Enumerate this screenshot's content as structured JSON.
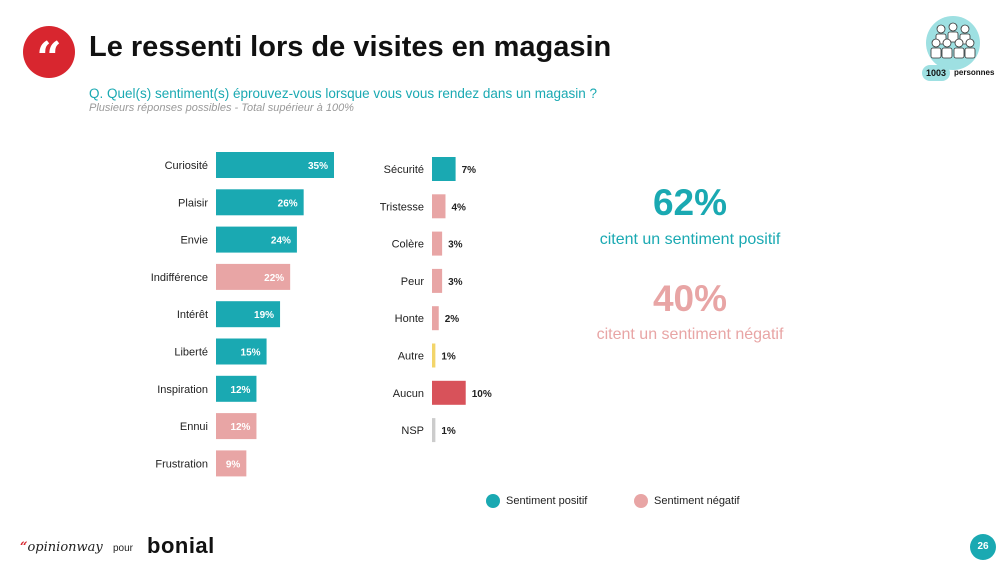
{
  "header": {
    "quote_glyph": "“",
    "title": "Le ressenti lors de visites en magasin",
    "question": "Q. Quel(s) sentiment(s) éprouvez-vous lorsque vous vous rendez dans un magasin ?",
    "note": "Plusieurs réponses possibles - Total supérieur à 100%"
  },
  "panel": {
    "icon": "people-group-icon",
    "count": "1003",
    "label": "personnes"
  },
  "colors": {
    "positive": "#1aa9b2",
    "negative": "#e8a5a5",
    "other": "#f3d56a",
    "none": "#d8525a",
    "nsp": "#cccccc"
  },
  "chart_data": [
    {
      "type": "bar",
      "orientation": "horizontal",
      "categories": [
        "Curiosité",
        "Plaisir",
        "Envie",
        "Indifférence",
        "Intérêt",
        "Liberté",
        "Inspiration",
        "Ennui",
        "Frustration"
      ],
      "values": [
        35,
        26,
        24,
        22,
        19,
        15,
        12,
        12,
        9
      ],
      "labels": [
        "35%",
        "26%",
        "24%",
        "22%",
        "19%",
        "15%",
        "12%",
        "12%",
        "9%"
      ],
      "sentiment": [
        "positive",
        "positive",
        "positive",
        "negative",
        "positive",
        "positive",
        "positive",
        "negative",
        "negative"
      ],
      "xlim": [
        0,
        35
      ],
      "unit": "%"
    },
    {
      "type": "bar",
      "orientation": "horizontal",
      "categories": [
        "Sécurité",
        "Tristesse",
        "Colère",
        "Peur",
        "Honte",
        "Autre",
        "Aucun",
        "NSP"
      ],
      "values": [
        7,
        4,
        3,
        3,
        2,
        1,
        10,
        1
      ],
      "labels": [
        "7%",
        "4%",
        "3%",
        "3%",
        "2%",
        "1%",
        "10%",
        "1%"
      ],
      "sentiment": [
        "positive",
        "negative",
        "negative",
        "negative",
        "negative",
        "other",
        "none",
        "nsp"
      ],
      "xlim": [
        0,
        35
      ],
      "unit": "%"
    }
  ],
  "kpis": {
    "positive_pct": "62%",
    "positive_text": "citent un sentiment positif",
    "negative_pct": "40%",
    "negative_text": "citent un sentiment négatif"
  },
  "legend": {
    "positive": "Sentiment positif",
    "negative": "Sentiment négatif"
  },
  "footer": {
    "opinionway_mark": "“",
    "opinionway": "opinionway",
    "pour": "pour",
    "bonial": "bonial",
    "page": "26"
  }
}
